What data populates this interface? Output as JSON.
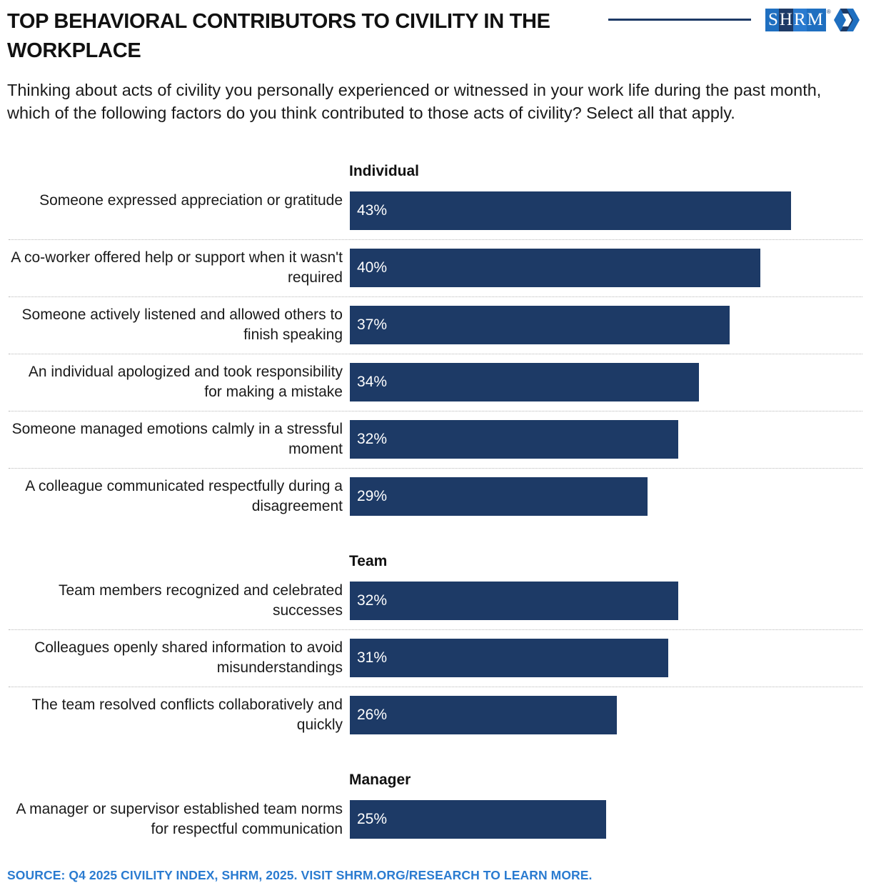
{
  "title": "TOP BEHAVIORAL CONTRIBUTORS TO CIVILITY IN THE WORKPLACE",
  "subtitle": "Thinking about acts of civility you personally experienced or witnessed in your work life during the past month, which of the following factors do you think contributed to those acts of civility? Select all that apply.",
  "logo": {
    "text": "SHRM",
    "letters": [
      "S",
      "H",
      "R",
      "M"
    ],
    "registered": "®",
    "mark": "hexagon-arrow-icon"
  },
  "colors": {
    "bar": "#1d3a66",
    "source": "#2a7bd0",
    "logo_blue": "#1f6fc0",
    "logo_navy": "#1d3a66"
  },
  "chart_data": {
    "type": "bar",
    "orientation": "horizontal",
    "unit": "%",
    "xlim": [
      0,
      45
    ],
    "grid": false,
    "groups": [
      {
        "name": "Individual",
        "categories": [
          "Someone expressed appreciation or gratitude",
          "A co-worker offered help or support when it wasn't required",
          "Someone actively listened and allowed others to finish speaking",
          "An individual apologized and took responsibility for making a mistake",
          "Someone managed emotions calmly in a stressful moment",
          "A colleague communicated respectfully during a disagreement"
        ],
        "values": [
          43,
          40,
          37,
          34,
          32,
          29
        ],
        "labels": [
          "43%",
          "40%",
          "37%",
          "34%",
          "32%",
          "29%"
        ]
      },
      {
        "name": "Team",
        "categories": [
          "Team members recognized and celebrated successes",
          "Colleagues openly shared information to avoid misunderstandings",
          "The team resolved conflicts collaboratively and quickly"
        ],
        "values": [
          32,
          31,
          26
        ],
        "labels": [
          "32%",
          "31%",
          "26%"
        ]
      },
      {
        "name": "Manager",
        "categories": [
          "A manager or supervisor established team norms for respectful communication"
        ],
        "values": [
          25
        ],
        "labels": [
          "25%"
        ]
      }
    ]
  },
  "source": "SOURCE: Q4 2025 CIVILITY INDEX, SHRM, 2025. VISIT SHRM.ORG/RESEARCH TO LEARN MORE."
}
